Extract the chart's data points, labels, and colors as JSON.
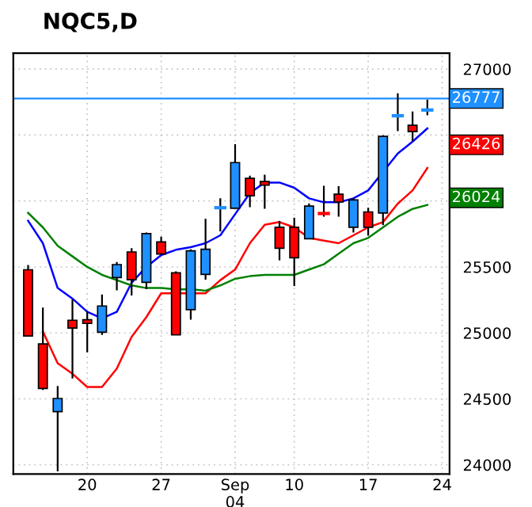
{
  "chart_data": {
    "type": "candlestick",
    "title": "NQC5,D",
    "categories": [
      null,
      null,
      null,
      null,
      "20",
      null,
      null,
      null,
      null,
      "27",
      null,
      null,
      null,
      null,
      "Sep\n04",
      null,
      null,
      null,
      "10",
      null,
      null,
      null,
      null,
      "17",
      null,
      null,
      null,
      null,
      "24"
    ],
    "ohlc": [
      [
        25479,
        25515,
        24977,
        24977
      ],
      [
        24917,
        25192,
        24567,
        24579
      ],
      [
        24403,
        24598,
        23950,
        24503
      ],
      [
        25096,
        25252,
        24654,
        25037
      ],
      [
        25100,
        25164,
        24853,
        25072
      ],
      [
        25005,
        25291,
        24985,
        25204
      ],
      [
        25419,
        25538,
        25323,
        25518
      ],
      [
        25614,
        25642,
        25283,
        25403
      ],
      [
        25383,
        25761,
        25331,
        25753
      ],
      [
        25690,
        25730,
        25598,
        25598
      ],
      [
        25455,
        25467,
        24985,
        24985
      ],
      [
        25176,
        25634,
        25100,
        25622
      ],
      [
        25443,
        25865,
        25403,
        25634
      ],
      [
        25949,
        26020,
        25769,
        25949
      ],
      [
        25945,
        26431,
        25945,
        26291
      ],
      [
        26172,
        26192,
        25953,
        26040
      ],
      [
        26148,
        26200,
        25941,
        26120
      ],
      [
        25801,
        25849,
        25550,
        25642
      ],
      [
        25801,
        25873,
        25355,
        25570
      ],
      [
        25714,
        25981,
        25714,
        25961
      ],
      [
        25905,
        26116,
        25881,
        25905
      ],
      [
        26052,
        26112,
        25881,
        25992
      ],
      [
        25801,
        26020,
        25761,
        26008
      ],
      [
        25917,
        25949,
        25738,
        25801
      ],
      [
        25909,
        26498,
        25817,
        26490
      ],
      [
        26646,
        26817,
        26530,
        26646
      ],
      [
        26574,
        26678,
        26454,
        26526
      ],
      [
        26690,
        26769,
        26650,
        26690
      ],
      null
    ],
    "colors": [
      "#ff0000",
      "#ff0000",
      "#1e90ff",
      "#ff0000",
      "#ff0000",
      "#1e90ff",
      "#1e90ff",
      "#ff0000",
      "#1e90ff",
      "#ff0000",
      "#ff0000",
      "#1e90ff",
      "#1e90ff",
      "#1e90ff",
      "#1e90ff",
      "#ff0000",
      "#ff0000",
      "#ff0000",
      "#ff0000",
      "#1e90ff",
      "#ff0000",
      "#ff0000",
      "#1e90ff",
      "#ff0000",
      "#1e90ff",
      "#1e90ff",
      "#ff0000",
      "#1e90ff",
      null
    ],
    "series": [
      {
        "type": "line",
        "color": "#0000ff",
        "values": [
          25850,
          25680,
          25340,
          25260,
          25160,
          25110,
          25160,
          25380,
          25500,
          25590,
          25630,
          25650,
          25680,
          25740,
          25900,
          26060,
          26140,
          26140,
          26100,
          26020,
          25990,
          25990,
          26020,
          26080,
          26220,
          26360,
          26450,
          26550,
          null
        ]
      },
      {
        "type": "line",
        "color": "#ff0000",
        "values": [
          null,
          25010,
          24770,
          24690,
          24590,
          24590,
          24730,
          24970,
          25120,
          25300,
          25300,
          25300,
          25300,
          25400,
          25480,
          25680,
          25820,
          25840,
          25800,
          25720,
          25700,
          25680,
          25740,
          25800,
          25840,
          25980,
          26080,
          26250,
          null
        ]
      },
      {
        "type": "line",
        "color": "#008000",
        "values": [
          25910,
          25800,
          25660,
          25580,
          25500,
          25440,
          25400,
          25360,
          25340,
          25340,
          25330,
          25330,
          25320,
          25360,
          25410,
          25430,
          25440,
          25440,
          25440,
          25480,
          25520,
          25600,
          25680,
          25720,
          25800,
          25880,
          25940,
          25970,
          null
        ]
      }
    ],
    "ylim": [
      23930,
      27120
    ],
    "yticks": [
      24000,
      24500,
      25000,
      25500,
      {
        "value": 26000,
        "label": null
      },
      {
        "value": 26500,
        "label": null
      },
      27000
    ],
    "grid": true,
    "ref_lines": [
      {
        "axis": "y",
        "value": 26777,
        "label": "26777",
        "color": "#1e90ff"
      }
    ],
    "annotations": [
      {
        "text": "26426",
        "y": 26426
      },
      {
        "text": "26024",
        "y": 26024
      }
    ]
  }
}
